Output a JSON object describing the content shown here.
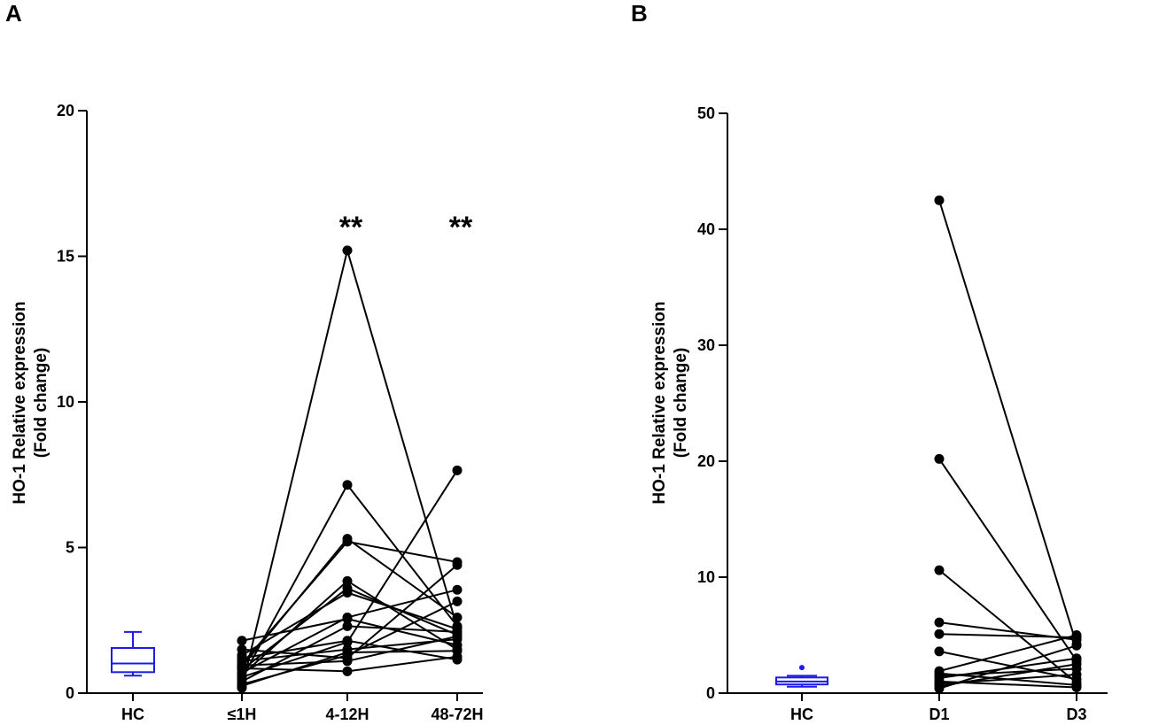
{
  "chart_data": [
    {
      "panel": "A",
      "type": "scatter",
      "subtype": "paired before-after with reference box plot",
      "ylabel_line1": "HO-1 Relative expression",
      "ylabel_line2": "(Fold change)",
      "ylim": [
        0,
        20
      ],
      "yticks": [
        0,
        5,
        10,
        15,
        20
      ],
      "categories": [
        "HC",
        "≤1H",
        "4-12H",
        "48-72H"
      ],
      "significance": [
        {
          "category": "4-12H",
          "label": "**"
        },
        {
          "category": "48-72H",
          "label": "**"
        }
      ],
      "reference_box": {
        "category": "HC",
        "color": "#1c1ce6",
        "whisker_low": 0.6,
        "q1": 0.72,
        "median": 1.02,
        "q3": 1.55,
        "whisker_high": 2.1
      },
      "paired_series": [
        [
          0.18,
          15.2,
          2.25
        ],
        [
          0.5,
          7.15,
          2.3
        ],
        [
          0.9,
          5.3,
          2.6
        ],
        [
          1.0,
          5.2,
          4.5
        ],
        [
          0.62,
          3.85,
          1.5
        ],
        [
          0.8,
          3.6,
          2.0
        ],
        [
          1.3,
          3.45,
          2.2
        ],
        [
          0.7,
          2.6,
          3.55
        ],
        [
          1.8,
          2.55,
          1.65
        ],
        [
          0.4,
          2.3,
          2.1
        ],
        [
          0.55,
          1.75,
          7.65
        ],
        [
          1.1,
          1.5,
          1.85
        ],
        [
          0.3,
          1.3,
          3.15
        ],
        [
          1.5,
          1.2,
          4.4
        ],
        [
          0.85,
          0.75,
          1.25
        ],
        [
          1.2,
          1.8,
          1.15
        ],
        [
          0.25,
          1.4,
          1.45
        ],
        [
          0.95,
          1.1,
          1.95
        ]
      ]
    },
    {
      "panel": "B",
      "type": "scatter",
      "subtype": "paired before-after with reference box plot",
      "ylabel_line1": "HO-1 Relative expression",
      "ylabel_line2": "(Fold change)",
      "ylim": [
        0,
        50
      ],
      "yticks": [
        0,
        10,
        20,
        30,
        40,
        50
      ],
      "categories": [
        "HC",
        "D1",
        "D3"
      ],
      "reference_box": {
        "category": "HC",
        "color": "#1c1ce6",
        "whisker_low": 0.55,
        "q1": 0.75,
        "median": 1.0,
        "q3": 1.35,
        "whisker_high": 1.5,
        "outliers": [
          2.2
        ]
      },
      "paired_series": [
        [
          42.5,
          4.2
        ],
        [
          20.2,
          2.8
        ],
        [
          10.6,
          0.9
        ],
        [
          6.1,
          4.6
        ],
        [
          5.1,
          4.8
        ],
        [
          3.6,
          1.2
        ],
        [
          1.9,
          5.0
        ],
        [
          1.5,
          2.1
        ],
        [
          1.3,
          3.0
        ],
        [
          1.0,
          0.5
        ],
        [
          0.8,
          1.6
        ],
        [
          0.4,
          4.1
        ],
        [
          1.7,
          0.7
        ],
        [
          0.6,
          2.5
        ]
      ]
    }
  ]
}
